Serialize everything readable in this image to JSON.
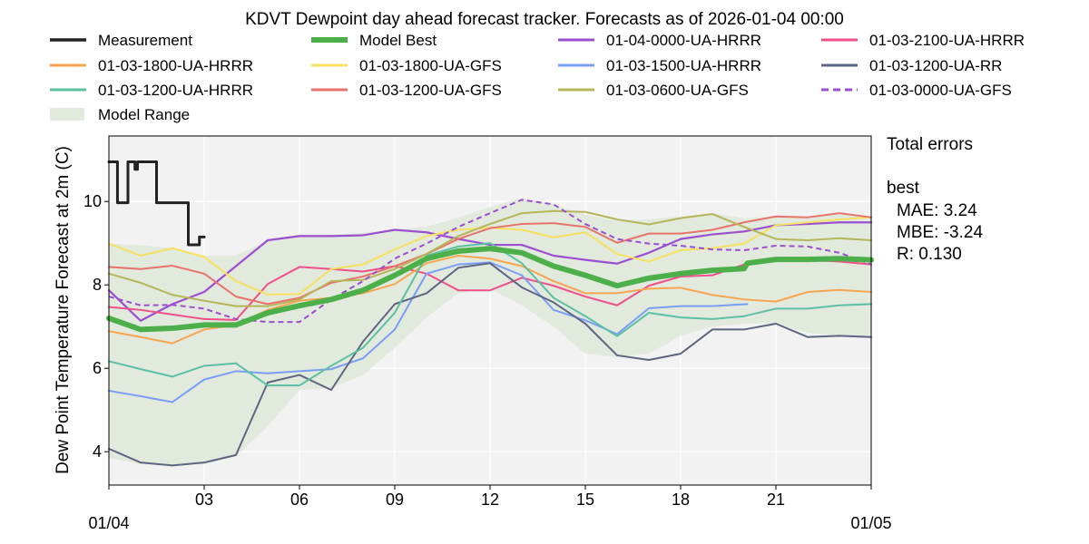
{
  "chart_data": {
    "type": "line",
    "title": "KDVT Dewpoint day ahead forecast tracker. Forecasts as of 2026-01-04 00:00",
    "ylabel": "Dew Point Temperature Forecast at 2m (C)",
    "xlabel": "",
    "xlim_hours": [
      0,
      24
    ],
    "ylim": [
      3.2,
      11.57
    ],
    "yticks": [
      4,
      6,
      8,
      10
    ],
    "xticks": [
      {
        "h": 0,
        "label": "01/04"
      },
      {
        "h": 3,
        "label": "03"
      },
      {
        "h": 6,
        "label": "06"
      },
      {
        "h": 9,
        "label": "09"
      },
      {
        "h": 12,
        "label": "12"
      },
      {
        "h": 15,
        "label": "15"
      },
      {
        "h": 18,
        "label": "18"
      },
      {
        "h": 21,
        "label": "21"
      },
      {
        "h": 24,
        "label": "01/05"
      }
    ],
    "grid": true,
    "legend_position": "top",
    "background": "#f2f2f2",
    "range": {
      "name": "Model Range",
      "color": "#e1eadc",
      "hours": [
        0,
        1,
        2,
        3,
        4,
        5,
        6,
        7,
        8,
        9,
        10,
        11,
        12,
        13,
        14,
        15,
        16,
        17,
        18,
        19,
        20,
        21,
        22,
        23,
        24
      ],
      "upper": [
        8.99,
        8.95,
        8.88,
        8.7,
        8.7,
        9.07,
        9.21,
        9.21,
        9.25,
        9.32,
        9.4,
        9.61,
        9.87,
        10.08,
        9.93,
        9.68,
        9.54,
        9.57,
        9.64,
        9.72,
        9.6,
        9.64,
        9.64,
        9.72,
        9.64
      ],
      "lower": [
        3.85,
        3.7,
        3.67,
        3.7,
        3.88,
        4.61,
        5.48,
        5.52,
        5.84,
        6.49,
        7.22,
        7.8,
        7.9,
        7.51,
        7.0,
        6.35,
        6.27,
        6.35,
        6.78,
        7.0,
        7.07,
        7.07,
        6.85,
        6.78,
        6.75
      ]
    },
    "series": [
      {
        "name": "Measurement",
        "color": "#222222",
        "width": 3,
        "dash": false,
        "step": true,
        "x": [
          0,
          0.27,
          0.27,
          0.6,
          0.6,
          0.82,
          0.82,
          0.9,
          0.9,
          1.5,
          1.5,
          2.5,
          2.5,
          2.5,
          2.85,
          2.85,
          3.0
        ],
        "y": [
          10.95,
          10.95,
          9.97,
          9.97,
          10.95,
          10.95,
          10.77,
          10.77,
          10.95,
          10.95,
          9.97,
          9.97,
          9.97,
          8.96,
          8.96,
          9.15,
          9.15
        ]
      },
      {
        "name": "Model Best",
        "color": "#4daf4a",
        "width": 6,
        "dash": false,
        "x": [
          0,
          1,
          2,
          3,
          4,
          5,
          6,
          7,
          8,
          9,
          10,
          11,
          12,
          13,
          14,
          15,
          16,
          17,
          18,
          19,
          20,
          20.1,
          21,
          22,
          23,
          24
        ],
        "y": [
          7.2,
          6.93,
          6.96,
          7.04,
          7.04,
          7.33,
          7.5,
          7.65,
          7.87,
          8.23,
          8.63,
          8.81,
          8.87,
          8.77,
          8.45,
          8.23,
          7.98,
          8.16,
          8.27,
          8.35,
          8.39,
          8.52,
          8.61,
          8.61,
          8.63,
          8.6
        ]
      },
      {
        "name": "01-04-0000-UA-HRRR",
        "color": "#9b4fd0",
        "width": 2.2,
        "dash": false,
        "x": [
          0,
          1,
          2,
          3,
          4,
          5,
          6,
          7,
          8,
          9,
          10,
          11,
          12,
          13,
          14,
          15,
          16,
          17,
          18,
          19,
          20,
          21,
          22,
          23,
          24
        ],
        "y": [
          7.87,
          7.14,
          7.54,
          7.83,
          8.45,
          9.07,
          9.17,
          9.17,
          9.19,
          9.32,
          9.26,
          9.1,
          8.96,
          8.96,
          8.7,
          8.6,
          8.51,
          8.77,
          9.1,
          9.21,
          9.28,
          9.43,
          9.46,
          9.5,
          9.5
        ]
      },
      {
        "name": "01-03-2100-UA-HRRR",
        "color": "#f0508a",
        "width": 2,
        "dash": false,
        "x": [
          0,
          1,
          2,
          3,
          4,
          5,
          6,
          7,
          8,
          9,
          10,
          11,
          12,
          13,
          14,
          15,
          16,
          17,
          18,
          19,
          20,
          21,
          22,
          23,
          24
        ],
        "y": [
          7.47,
          7.4,
          7.29,
          7.18,
          7.16,
          8.02,
          8.43,
          8.38,
          8.32,
          8.45,
          8.27,
          7.87,
          7.87,
          8.17,
          7.98,
          7.72,
          7.51,
          7.98,
          8.2,
          8.23,
          8.49,
          8.6,
          8.6,
          8.56,
          8.49
        ]
      },
      {
        "name": "01-03-1800-UA-HRRR",
        "color": "#f9a550",
        "width": 2,
        "dash": false,
        "x": [
          0,
          1,
          2,
          3,
          4,
          5,
          6,
          7,
          8,
          9,
          10,
          11,
          12,
          13,
          14,
          15,
          16,
          17,
          18,
          19,
          20,
          21,
          22,
          23,
          24
        ],
        "y": [
          6.89,
          6.75,
          6.6,
          6.93,
          7.04,
          7.4,
          7.62,
          7.69,
          7.8,
          8.02,
          8.52,
          8.7,
          8.63,
          8.45,
          8.09,
          7.8,
          7.8,
          7.91,
          7.93,
          7.76,
          7.65,
          7.6,
          7.83,
          7.88,
          7.83
        ]
      },
      {
        "name": "01-03-1800-UA-GFS",
        "color": "#f7e160",
        "width": 2,
        "dash": false,
        "x": [
          0,
          1,
          2,
          3,
          4,
          5,
          6,
          7,
          8,
          9,
          10,
          11,
          12,
          13,
          14,
          15,
          16,
          17,
          18,
          19,
          20,
          21,
          22,
          23,
          24
        ],
        "y": [
          8.99,
          8.7,
          8.88,
          8.67,
          8.09,
          7.77,
          7.78,
          8.38,
          8.49,
          8.85,
          9.17,
          9.32,
          9.37,
          9.32,
          9.14,
          9.26,
          8.74,
          8.56,
          8.83,
          8.88,
          8.99,
          9.43,
          9.5,
          9.57,
          9.62
        ]
      },
      {
        "name": "01-03-1500-UA-HRRR",
        "color": "#7a9ef5",
        "width": 2,
        "dash": false,
        "x": [
          0,
          1,
          2,
          3,
          4,
          5,
          6,
          7,
          8,
          9,
          10,
          11,
          12,
          13,
          14,
          15,
          16,
          17,
          18,
          19,
          20.1
        ],
        "y": [
          5.46,
          5.33,
          5.19,
          5.73,
          5.93,
          5.88,
          5.93,
          5.98,
          6.24,
          6.93,
          8.27,
          8.49,
          8.54,
          8.23,
          7.4,
          7.15,
          6.82,
          7.44,
          7.49,
          7.49,
          7.54
        ]
      },
      {
        "name": "01-03-1200-UA-RR",
        "color": "#5f6580",
        "width": 2,
        "dash": false,
        "x": [
          0,
          1,
          2,
          3,
          4,
          5,
          6,
          7,
          8,
          9,
          10,
          11,
          12,
          13,
          14,
          15,
          16,
          17,
          18,
          19,
          20,
          21,
          22,
          23,
          24
        ],
        "y": [
          4.07,
          3.74,
          3.67,
          3.74,
          3.92,
          5.66,
          5.84,
          5.48,
          6.64,
          7.54,
          7.8,
          8.41,
          8.52,
          7.94,
          7.58,
          7.07,
          6.31,
          6.2,
          6.35,
          6.93,
          6.93,
          7.07,
          6.75,
          6.78,
          6.75
        ]
      },
      {
        "name": "01-03-1200-UA-HRRR",
        "color": "#5cc0a2",
        "width": 2,
        "dash": false,
        "x": [
          0,
          1,
          2,
          3,
          4,
          5,
          6,
          7,
          8,
          9,
          10,
          11,
          12,
          13,
          14,
          15,
          16,
          17,
          18,
          19,
          20,
          21,
          22,
          23,
          24
        ],
        "y": [
          6.17,
          5.98,
          5.8,
          6.06,
          6.12,
          5.59,
          5.59,
          6.06,
          6.49,
          7.33,
          8.7,
          8.92,
          9.0,
          8.52,
          7.69,
          7.25,
          6.77,
          7.33,
          7.22,
          7.18,
          7.25,
          7.43,
          7.43,
          7.51,
          7.54
        ]
      },
      {
        "name": "01-03-1200-UA-GFS",
        "color": "#e8736a",
        "width": 2,
        "dash": false,
        "x": [
          0,
          1,
          2,
          3,
          4,
          5,
          6,
          7,
          8,
          9,
          10,
          11,
          12,
          13,
          14,
          15,
          16,
          17,
          18,
          19,
          20,
          21,
          22,
          23,
          24
        ],
        "y": [
          8.43,
          8.38,
          8.46,
          8.27,
          7.72,
          7.54,
          7.69,
          8.05,
          8.2,
          8.45,
          8.74,
          9.1,
          9.36,
          9.46,
          9.48,
          9.39,
          9.01,
          9.23,
          9.23,
          9.32,
          9.5,
          9.64,
          9.62,
          9.72,
          9.62
        ]
      },
      {
        "name": "01-03-0600-UA-GFS",
        "color": "#b5b55a",
        "width": 2,
        "dash": false,
        "x": [
          0,
          1,
          2,
          3,
          4,
          5,
          6,
          7,
          8,
          9,
          10,
          11,
          12,
          13,
          14,
          15,
          16,
          17,
          18,
          19,
          20,
          21,
          22,
          23,
          24
        ],
        "y": [
          8.27,
          8.05,
          7.76,
          7.62,
          7.49,
          7.49,
          7.65,
          8.09,
          8.12,
          8.38,
          8.74,
          9.17,
          9.46,
          9.72,
          9.77,
          9.75,
          9.57,
          9.45,
          9.6,
          9.7,
          9.39,
          9.1,
          9.07,
          9.12,
          9.07
        ]
      },
      {
        "name": "01-03-0000-UA-GFS",
        "color": "#9b4fd0",
        "width": 2,
        "dash": true,
        "x": [
          0,
          1,
          2,
          3,
          4,
          5,
          6,
          7,
          8,
          9,
          10,
          11,
          12,
          13,
          14,
          15,
          16,
          17,
          18,
          19,
          20,
          21,
          22,
          23,
          24
        ],
        "y": [
          7.72,
          7.51,
          7.52,
          7.43,
          7.18,
          7.11,
          7.11,
          7.65,
          8.09,
          8.63,
          8.99,
          9.39,
          9.72,
          10.04,
          9.93,
          9.46,
          9.1,
          8.99,
          8.94,
          8.85,
          8.83,
          8.94,
          8.92,
          8.77,
          8.49
        ]
      }
    ],
    "legend_order": [
      "Measurement",
      "Model Best",
      "01-04-0000-UA-HRRR",
      "01-03-2100-UA-HRRR",
      "01-03-1800-UA-HRRR",
      "01-03-1800-UA-GFS",
      "01-03-1500-UA-HRRR",
      "01-03-1200-UA-RR",
      "01-03-1200-UA-HRRR",
      "01-03-1200-UA-GFS",
      "01-03-0600-UA-GFS",
      "01-03-0000-UA-GFS",
      "Model Range"
    ]
  },
  "errors": {
    "heading": "Total errors",
    "model": "best",
    "mae": "MAE: 3.24",
    "mbe": "MBE: -3.24",
    "r": "R: 0.130"
  }
}
